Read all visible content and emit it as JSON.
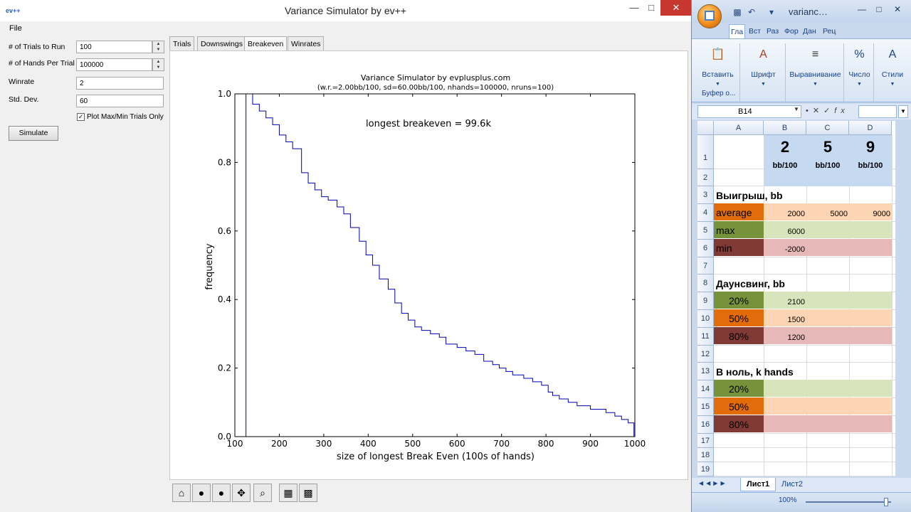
{
  "left_window": {
    "title": "Variance Simulator by ev++",
    "app_icon_text": "ev++",
    "menu": {
      "file": "File"
    },
    "params": [
      {
        "label": "# of Trials to Run",
        "value": "100",
        "spinner": true
      },
      {
        "label": "# of Hands Per Trial",
        "value": "100000",
        "spinner": true
      },
      {
        "label": "Winrate",
        "value": "2",
        "spinner": false
      },
      {
        "label": "Std. Dev.",
        "value": "60",
        "spinner": false
      }
    ],
    "checkbox": {
      "label": "Plot Max/Min Trials Only",
      "checked": true,
      "mark": "✓"
    },
    "simulate_button": "Simulate",
    "tabs": [
      {
        "label": "Trials",
        "active": false
      },
      {
        "label": "Downswings",
        "active": false
      },
      {
        "label": "Breakeven",
        "active": true
      },
      {
        "label": "Winrates",
        "active": false
      }
    ],
    "toolbar_icons": [
      "home-icon",
      "back-icon",
      "forward-icon",
      "pan-icon",
      "zoom-icon",
      "configure-icon",
      "save-icon"
    ]
  },
  "chart_data": {
    "type": "line",
    "title": "Variance Simulator by evplusplus.com",
    "subtitle": "(w.r.=2.00bb/100, sd=60.00bb/100, nhands=100000, nruns=100)",
    "annotation": "longest breakeven = 99.6k",
    "xlabel": "size of longest Break Even (100s of hands)",
    "ylabel": "frequency",
    "xlim": [
      100,
      1000
    ],
    "ylim": [
      0.0,
      1.0
    ],
    "xticks": [
      100,
      200,
      300,
      400,
      500,
      600,
      700,
      800,
      900,
      1000
    ],
    "yticks": [
      0.0,
      0.2,
      0.4,
      0.6,
      0.8,
      1.0
    ],
    "grid": false,
    "series_color": "#0000b0",
    "x": [
      125,
      125,
      140,
      155,
      170,
      185,
      200,
      215,
      230,
      250,
      265,
      280,
      295,
      310,
      330,
      345,
      360,
      380,
      395,
      410,
      425,
      445,
      460,
      475,
      490,
      505,
      520,
      540,
      560,
      575,
      600,
      620,
      640,
      660,
      680,
      695,
      710,
      725,
      750,
      770,
      790,
      805,
      815,
      830,
      850,
      870,
      900,
      935,
      955,
      970,
      985,
      998
    ],
    "y": [
      0.0,
      1.0,
      0.97,
      0.95,
      0.93,
      0.91,
      0.88,
      0.86,
      0.84,
      0.77,
      0.74,
      0.72,
      0.7,
      0.69,
      0.67,
      0.65,
      0.61,
      0.57,
      0.53,
      0.5,
      0.46,
      0.43,
      0.39,
      0.36,
      0.34,
      0.32,
      0.31,
      0.3,
      0.29,
      0.27,
      0.26,
      0.25,
      0.24,
      0.22,
      0.21,
      0.2,
      0.19,
      0.18,
      0.17,
      0.16,
      0.15,
      0.13,
      0.12,
      0.11,
      0.1,
      0.09,
      0.08,
      0.07,
      0.06,
      0.05,
      0.04,
      0.0
    ]
  },
  "right_window": {
    "title": "varianc…",
    "ribbon_tabs": [
      "Гла",
      "Вст",
      "Раз",
      "Фор",
      "Дан",
      "Рец"
    ],
    "ribbon_groups": [
      {
        "label": "Вставить",
        "icon": "paste-icon"
      },
      {
        "label": "Шрифт",
        "icon": "font-icon"
      },
      {
        "label": "Выравнивание",
        "icon": "align-icon"
      },
      {
        "label": "Число",
        "icon": "percent-icon"
      },
      {
        "label": "Стили",
        "icon": "styles-icon"
      }
    ],
    "clipboard_label": "Буфер о...",
    "name_box": "B14",
    "fx": "fx",
    "columns": [
      "A",
      "B",
      "C",
      "D"
    ],
    "rows": [
      "1",
      "2",
      "3",
      "4",
      "5",
      "6",
      "7",
      "8",
      "9",
      "10",
      "11",
      "12",
      "13",
      "14",
      "15",
      "16",
      "17",
      "18",
      "19"
    ],
    "cells": {
      "b1_big": "2",
      "c1_big": "5",
      "d1_big": "9",
      "b1_small": "bb/100",
      "c1_small": "bb/100",
      "d1_small": "bb/100",
      "a3": "Выигрыш, bb",
      "a4": "average",
      "b4": "2000",
      "c4": "5000",
      "d4": "9000",
      "a5": "max",
      "b5": "6000",
      "a6": "min",
      "b6": "-2000",
      "a8": "Даунсвинг, bb",
      "a9": "20%",
      "b9": "2100",
      "a10": "50%",
      "b10": "1500",
      "a11": "80%",
      "b11": "1200",
      "a13": "В ноль, k hands",
      "a14": "20%",
      "a15": "50%",
      "a16": "80%"
    },
    "colors": {
      "green": "#76933c",
      "orange": "#e26b0a",
      "maroon": "#7f3a35",
      "light_green": "#d8e4bc",
      "light_orange": "#fcd5b4",
      "light_pink": "#e6b9b8",
      "header_blue": "#c5d9f1"
    },
    "sheet_tabs": [
      "Лист1",
      "Лист2"
    ],
    "zoom": "100%"
  }
}
